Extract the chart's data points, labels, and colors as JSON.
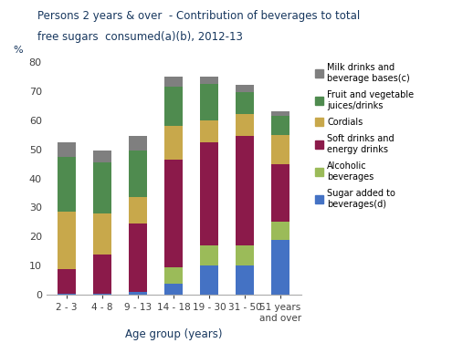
{
  "categories": [
    "2 - 3",
    "4 - 8",
    "9 - 13",
    "14 - 18",
    "19 - 30",
    "31 - 50",
    "51 years\nand over"
  ],
  "title_line1": "Persons 2 years & over  - Contribution of beverages to total",
  "title_line2": "free sugars  consumed(a)(b), 2012-13",
  "xlabel": "Age group (years)",
  "ylabel": "%",
  "ylim": [
    0,
    80
  ],
  "yticks": [
    0,
    10,
    20,
    30,
    40,
    50,
    60,
    70,
    80
  ],
  "series": {
    "Sugar added to\nbeverages(d)": {
      "values": [
        0.5,
        0.5,
        1.0,
        4.0,
        10.0,
        10.0,
        19.0
      ],
      "color": "#4472C4"
    },
    "Alcoholic\nbeverages": {
      "values": [
        0.0,
        0.0,
        0.0,
        5.5,
        7.0,
        7.0,
        6.0
      ],
      "color": "#9BBB59"
    },
    "Soft drinks and\nenergy drinks": {
      "values": [
        8.5,
        13.5,
        23.5,
        37.0,
        35.5,
        37.5,
        20.0
      ],
      "color": "#8B1A4A"
    },
    "Cordials": {
      "values": [
        19.5,
        14.0,
        9.0,
        11.5,
        7.5,
        7.5,
        10.0
      ],
      "color": "#C8A84B"
    },
    "Fruit and vegetable\njuices/drinks": {
      "values": [
        19.0,
        17.5,
        16.0,
        13.5,
        12.5,
        7.5,
        6.5
      ],
      "color": "#4F8B4F"
    },
    "Milk drinks and\nbeverage bases(c)": {
      "values": [
        5.0,
        4.0,
        5.0,
        3.5,
        2.5,
        2.5,
        1.5
      ],
      "color": "#7F7F7F"
    }
  },
  "series_order": [
    "Sugar added to\nbeverages(d)",
    "Alcoholic\nbeverages",
    "Soft drinks and\nenergy drinks",
    "Cordials",
    "Fruit and vegetable\njuices/drinks",
    "Milk drinks and\nbeverage bases(c)"
  ],
  "legend_order": [
    "Milk drinks and\nbeverage bases(c)",
    "Fruit and vegetable\njuices/drinks",
    "Cordials",
    "Soft drinks and\nenergy drinks",
    "Alcoholic\nbeverages",
    "Sugar added to\nbeverages(d)"
  ],
  "title_color": "#17375E",
  "axis_label_color": "#17375E",
  "tick_color": "#404040",
  "bar_width": 0.5
}
